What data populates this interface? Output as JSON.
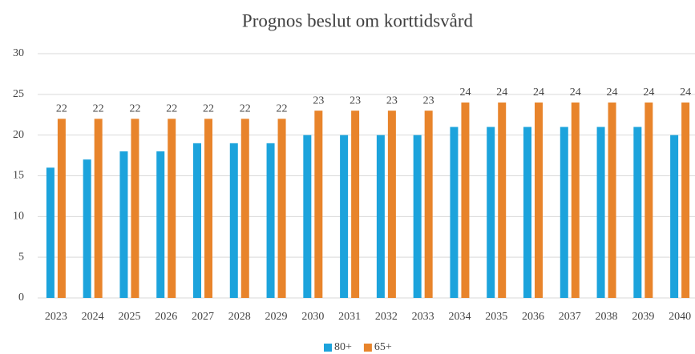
{
  "chart_data": {
    "type": "bar",
    "title": "Prognos beslut om korttidsvård",
    "categories": [
      "2023",
      "2024",
      "2025",
      "2026",
      "2027",
      "2028",
      "2029",
      "2030",
      "2031",
      "2032",
      "2033",
      "2034",
      "2035",
      "2036",
      "2037",
      "2038",
      "2039",
      "2040"
    ],
    "series": [
      {
        "name": "80+",
        "color": "#1ca3dc",
        "show_labels": false,
        "values": [
          16,
          17,
          18,
          18,
          19,
          19,
          19,
          20,
          20,
          20,
          20,
          21,
          21,
          21,
          21,
          21,
          21,
          20
        ]
      },
      {
        "name": "65+",
        "color": "#e8842b",
        "show_labels": true,
        "values": [
          22,
          22,
          22,
          22,
          22,
          22,
          22,
          23,
          23,
          23,
          23,
          24,
          24,
          24,
          24,
          24,
          24,
          24
        ]
      }
    ],
    "ylim": [
      0,
      30
    ],
    "yticks": [
      0,
      5,
      10,
      15,
      20,
      25,
      30
    ],
    "grid": true,
    "legend": "bottom"
  }
}
